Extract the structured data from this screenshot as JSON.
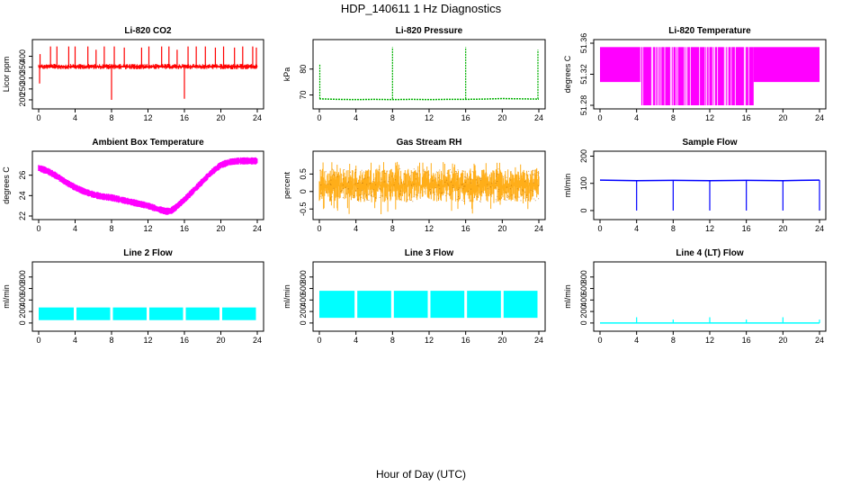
{
  "figure": {
    "title": "HDP_140611  1 Hz Diagnostics",
    "xlabel": "Hour of Day (UTC)"
  },
  "chart_data": [
    {
      "id": "co2",
      "type": "line",
      "title": "Li-820 CO2",
      "ylabel": "Licor ppm",
      "color": "#ff0000",
      "xlim": [
        0,
        24
      ],
      "ylim": [
        175,
        460
      ],
      "xticks": [
        0,
        4,
        8,
        12,
        16,
        20,
        24
      ],
      "yticks": [
        200,
        250,
        300,
        350,
        400
      ],
      "baseline": 352,
      "band": [
        340,
        365
      ],
      "x": [
        0,
        2,
        4,
        6,
        8,
        10,
        12,
        14,
        16,
        18,
        20,
        22,
        24
      ],
      "y": [
        352,
        352,
        352,
        352,
        352,
        352,
        352,
        352,
        352,
        352,
        352,
        352,
        352
      ],
      "spikes": [
        [
          0.1,
          275
        ],
        [
          0.15,
          410
        ],
        [
          1.3,
          445
        ],
        [
          2.0,
          445
        ],
        [
          3.3,
          445
        ],
        [
          4.0,
          445
        ],
        [
          5.4,
          445
        ],
        [
          6.3,
          430
        ],
        [
          7.2,
          445
        ],
        [
          8.0,
          200
        ],
        [
          8.3,
          445
        ],
        [
          9.4,
          440
        ],
        [
          11.3,
          440
        ],
        [
          12.1,
          445
        ],
        [
          13.5,
          445
        ],
        [
          14.3,
          445
        ],
        [
          15.2,
          430
        ],
        [
          16.0,
          205
        ],
        [
          16.4,
          445
        ],
        [
          17.3,
          445
        ],
        [
          18.3,
          445
        ],
        [
          19.4,
          440
        ],
        [
          20.3,
          445
        ],
        [
          21.5,
          440
        ],
        [
          22.4,
          445
        ],
        [
          23.5,
          445
        ],
        [
          23.9,
          440
        ]
      ]
    },
    {
      "id": "pressure",
      "type": "line",
      "title": "Li-820 Pressure",
      "ylabel": "kPa",
      "color": "#00b000",
      "xlim": [
        0,
        24
      ],
      "ylim": [
        66,
        90
      ],
      "xticks": [
        0,
        4,
        8,
        12,
        16,
        20,
        24
      ],
      "yticks": [
        70,
        80
      ],
      "x": [
        0,
        2,
        4,
        6,
        8,
        10,
        12,
        14,
        16,
        18,
        20,
        22,
        24
      ],
      "y": [
        68.5,
        68.3,
        68.2,
        68.3,
        68.2,
        68.3,
        68.2,
        68.3,
        68.3,
        68.4,
        68.6,
        68.5,
        68.4
      ],
      "spikes": [
        [
          0.05,
          82
        ],
        [
          8.0,
          88.5
        ],
        [
          16.0,
          88.5
        ],
        [
          23.9,
          87.5
        ]
      ]
    },
    {
      "id": "licor-temp",
      "type": "line",
      "title": "Li-820 Temperature",
      "ylabel": "degrees C",
      "color": "#ff00ff",
      "xlim": [
        0,
        24
      ],
      "ylim": [
        51.28,
        51.36
      ],
      "xticks": [
        0,
        4,
        8,
        12,
        16,
        20,
        24
      ],
      "yticks": [
        51.28,
        51.32,
        51.36
      ],
      "band_segments": [
        [
          0,
          4.5,
          51.31,
          51.355
        ],
        [
          4.5,
          16.8,
          51.28,
          51.355
        ],
        [
          16.8,
          24,
          51.31,
          51.355
        ]
      ]
    },
    {
      "id": "ambient-box-temp",
      "type": "line",
      "title": "Ambient Box Temperature",
      "ylabel": "degrees C",
      "color": "#ff00ff",
      "xlim": [
        0,
        24
      ],
      "ylim": [
        22,
        28
      ],
      "xticks": [
        0,
        4,
        8,
        12,
        16,
        20,
        24
      ],
      "yticks": [
        22,
        24,
        26
      ],
      "noise": 0.35,
      "x": [
        0,
        1,
        2,
        3,
        4,
        5,
        6,
        7,
        8,
        9,
        10,
        11,
        12,
        13,
        14,
        14.5,
        15,
        16,
        17,
        18,
        19,
        20,
        21,
        22,
        23,
        24
      ],
      "y": [
        26.7,
        26.4,
        25.9,
        25.3,
        24.8,
        24.4,
        24.1,
        23.9,
        23.8,
        23.6,
        23.4,
        23.2,
        23.0,
        22.7,
        22.45,
        22.5,
        22.8,
        23.6,
        24.5,
        25.4,
        26.3,
        27.0,
        27.3,
        27.4,
        27.4,
        27.4
      ]
    },
    {
      "id": "gas-stream-rh",
      "type": "line",
      "title": "Gas Stream RH",
      "ylabel": "percent",
      "color": "#ffa500",
      "xlim": [
        0,
        24
      ],
      "ylim": [
        -0.7,
        1.05
      ],
      "xticks": [
        0,
        4,
        8,
        12,
        16,
        20,
        24
      ],
      "yticks": [
        -0.5,
        0,
        0.5
      ],
      "band": [
        -0.3,
        0.65
      ],
      "band_extremes": [
        -0.65,
        0.85
      ]
    },
    {
      "id": "sample-flow",
      "type": "line",
      "title": "Sample Flow",
      "ylabel": "ml/min",
      "color": "#0000ff",
      "xlim": [
        0,
        24
      ],
      "ylim": [
        -20,
        205
      ],
      "xticks": [
        0,
        4,
        8,
        12,
        16,
        20,
        24
      ],
      "yticks": [
        0,
        100,
        200
      ],
      "x": [
        0,
        4,
        8,
        12,
        16,
        20,
        24
      ],
      "y": [
        112,
        110,
        111,
        110,
        111,
        110,
        112
      ],
      "spikes": [
        [
          4.0,
          0
        ],
        [
          8.0,
          0
        ],
        [
          12.0,
          0
        ],
        [
          16.0,
          0
        ],
        [
          20.0,
          0
        ],
        [
          24.0,
          0
        ]
      ]
    },
    {
      "id": "line2-flow",
      "type": "line",
      "title": "Line 2 Flow",
      "ylabel": "ml/min",
      "color": "#00ffff",
      "xlim": [
        0,
        24
      ],
      "ylim": [
        -80,
        1000
      ],
      "xticks": [
        0,
        4,
        8,
        12,
        16,
        20,
        24
      ],
      "yticks": [
        0,
        200,
        400,
        600,
        800
      ],
      "band": [
        50,
        270
      ],
      "gaps": [
        4,
        8,
        12,
        16,
        20
      ]
    },
    {
      "id": "line3-flow",
      "type": "line",
      "title": "Line 3 Flow",
      "ylabel": "ml/min",
      "color": "#00ffff",
      "xlim": [
        0,
        24
      ],
      "ylim": [
        -80,
        1000
      ],
      "xticks": [
        0,
        4,
        8,
        12,
        16,
        20,
        24
      ],
      "yticks": [
        0,
        200,
        400,
        600,
        800
      ],
      "band": [
        90,
        560
      ],
      "gaps": [
        4,
        8,
        12,
        16,
        20
      ]
    },
    {
      "id": "line4-flow",
      "type": "line",
      "title": "Line 4 (LT) Flow",
      "ylabel": "ml/min",
      "color": "#00ffff",
      "xlim": [
        0,
        24
      ],
      "ylim": [
        -80,
        1000
      ],
      "xticks": [
        0,
        4,
        8,
        12,
        16,
        20,
        24
      ],
      "yticks": [
        0,
        200,
        400,
        600,
        800
      ],
      "x": [
        0,
        24
      ],
      "y": [
        0,
        0
      ],
      "spikes": [
        [
          4.0,
          100
        ],
        [
          8.0,
          60
        ],
        [
          12.0,
          100
        ],
        [
          16.0,
          60
        ],
        [
          20.0,
          100
        ],
        [
          24.0,
          60
        ]
      ]
    }
  ]
}
